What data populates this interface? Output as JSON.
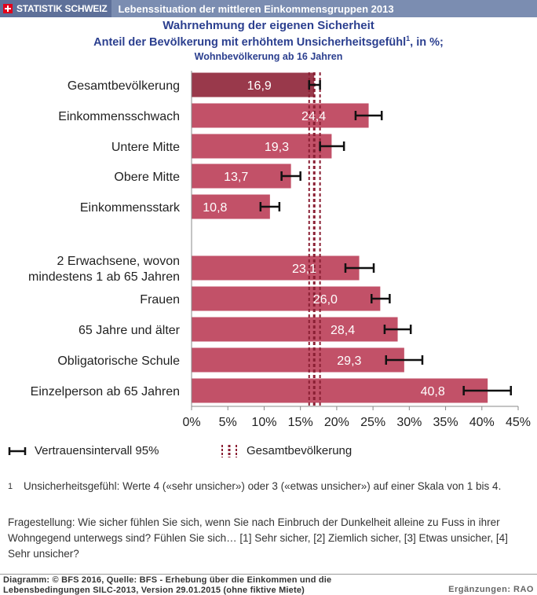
{
  "header": {
    "brand": "STATISTIK SCHWEIZ",
    "title": "Lebenssituation der mittleren Einkommensgruppen 2013"
  },
  "chart_data": {
    "type": "bar",
    "orientation": "horizontal",
    "title": "Wahrnehmung der eigenen Sicherheit",
    "subtitle": "Anteil der Bevölkerung mit erhöhtem Unsicherheitsgefühl",
    "subtitle_sup": "1",
    "subtitle_suffix": ", in %;",
    "subtitle2": "Wohnbevölkerung ab 16 Jahren",
    "categories": [
      [
        "Gesamtbevölkerung"
      ],
      [
        "Einkommensschwach"
      ],
      [
        "Untere Mitte"
      ],
      [
        "Obere Mitte"
      ],
      [
        "Einkommensstark"
      ],
      [
        "2 Erwachsene, wovon",
        "mindestens 1 ab 65 Jahren"
      ],
      [
        "Frauen"
      ],
      [
        "65 Jahre und älter"
      ],
      [
        "Obligatorische Schule"
      ],
      [
        "Einzelperson ab 65 Jahren"
      ]
    ],
    "values": [
      16.9,
      24.4,
      19.3,
      13.7,
      10.8,
      23.1,
      26.0,
      28.4,
      29.3,
      40.8
    ],
    "value_labels": [
      "16,9",
      "24,4",
      "19,3",
      "13,7",
      "10,8",
      "23,1",
      "26,0",
      "28,4",
      "29,3",
      "40,8"
    ],
    "ci_low": [
      16.2,
      22.6,
      17.7,
      12.4,
      9.5,
      21.2,
      24.8,
      26.6,
      26.8,
      37.5
    ],
    "ci_high": [
      17.7,
      26.2,
      21.0,
      15.0,
      12.1,
      25.1,
      27.3,
      30.2,
      31.8,
      44.0
    ],
    "total_reference": 16.9,
    "total_reference_ci": [
      16.2,
      17.7
    ],
    "xlim": [
      0,
      45
    ],
    "xticks": [
      "0%",
      "5%",
      "10%",
      "15%",
      "20%",
      "25%",
      "30%",
      "35%",
      "40%",
      "45%"
    ],
    "colors": {
      "bar": "#c25168",
      "bar_total": "#99394b",
      "ci": "#111111",
      "reference_line": "#8a1f33",
      "axis": "#888888"
    },
    "legend": {
      "ci_label": "Vertrauensintervall 95%",
      "total_label": "Gesamtbevölkerung"
    },
    "grid": false
  },
  "notes": {
    "footnote_num": "1",
    "footnote": "Unsicherheitsgefühl: Werte 4 («sehr unsicher») oder 3 («etwas unsicher») auf einer Skala von 1 bis 4.",
    "question": "Fragestellung: Wie sicher fühlen Sie sich, wenn Sie nach Einbruch der Dunkelheit alleine zu Fuss in ihrer Wohngegend unterwegs sind? Fühlen Sie sich… [1] Sehr sicher, [2] Ziemlich sicher, [3] Etwas unsicher, [4] Sehr unsicher?"
  },
  "footer": {
    "source": "Diagramm: © BFS 2016, Quelle: BFS - Erhebung über die Einkommen und die Lebensbedingungen  SILC-2013, Version 29.01.2015 (ohne fiktive Miete)",
    "additions": "Ergänzungen: RAO"
  }
}
